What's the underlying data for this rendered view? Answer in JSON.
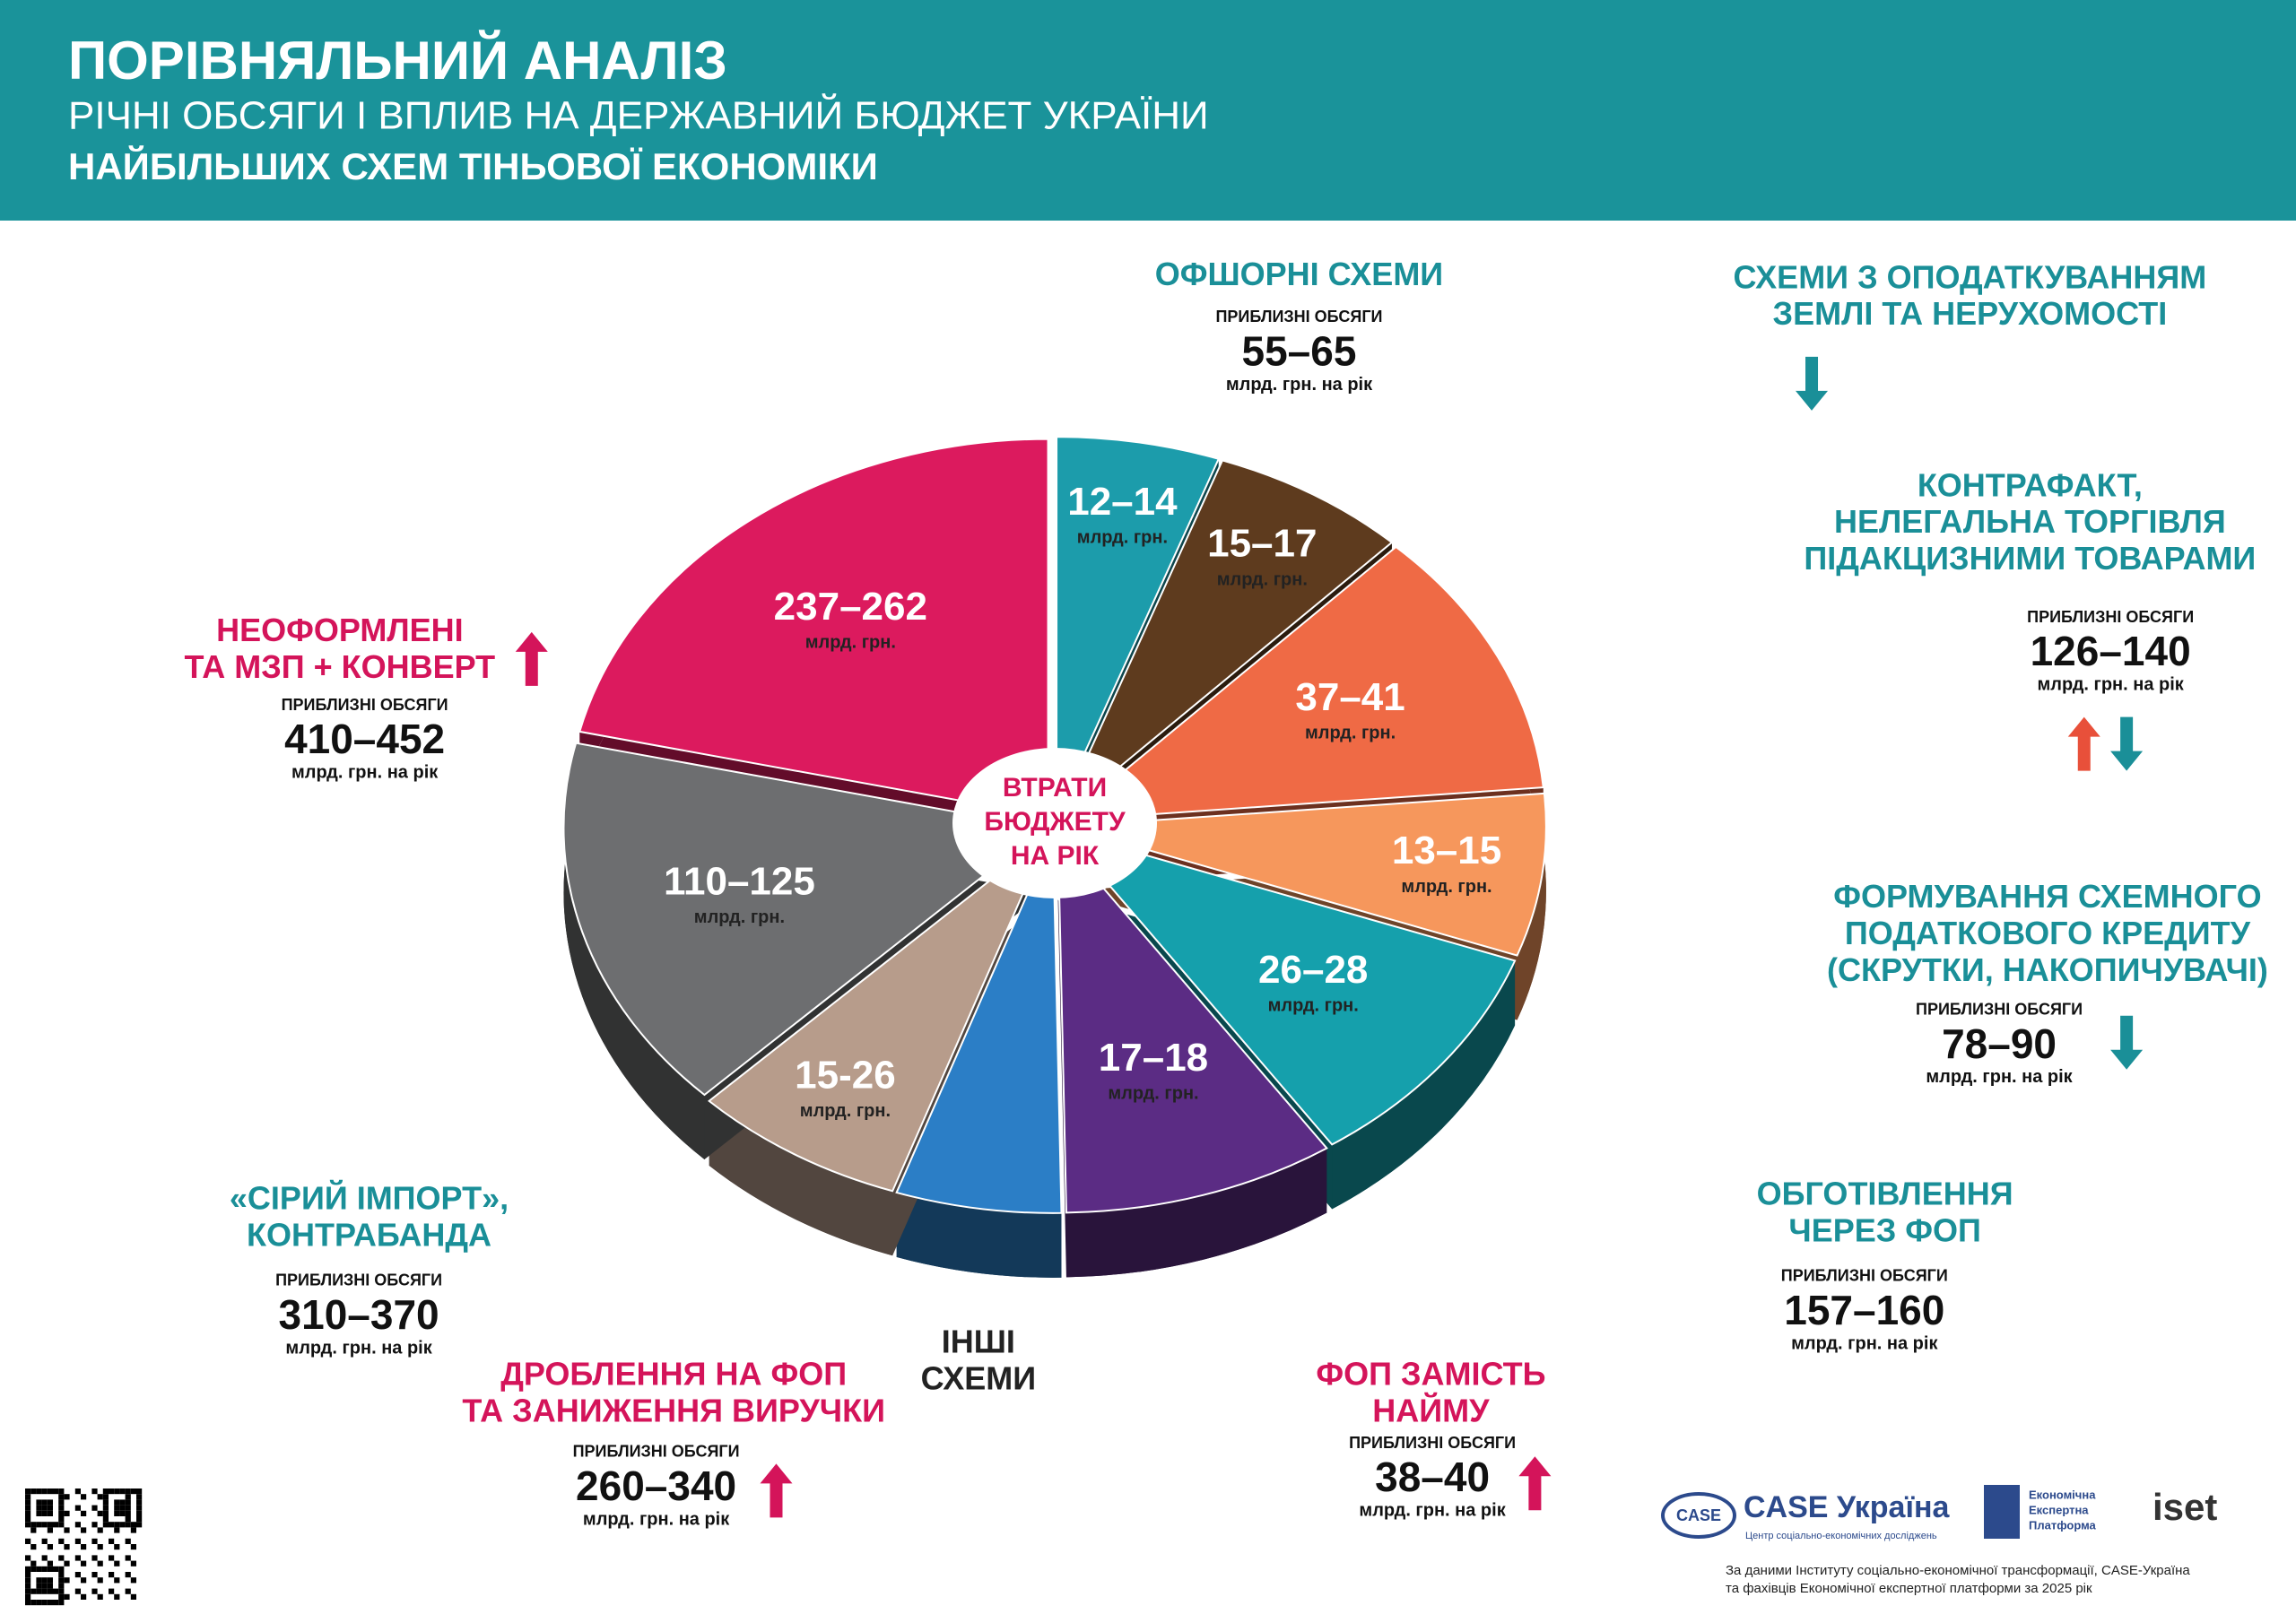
{
  "header": {
    "title": "ПОРІВНЯЛЬНИЙ АНАЛІЗ",
    "subtitle": [
      "РІЧНІ ОБСЯГИ І ВПЛИВ НА ДЕРЖАВНИЙ БЮДЖЕТ УКРАЇНИ",
      "НАЙБІЛЬШИХ СХЕМ ТІНЬОВОЇ ЕКОНОМІКИ"
    ]
  },
  "center_label": [
    "ВТРАТИ",
    "БЮДЖЕТУ",
    "НА РІК"
  ],
  "slices": [
    {
      "value": "12–14",
      "unit": "млрд. грн.",
      "color": "#1c9cab"
    },
    {
      "value": "15–17",
      "unit": "млрд. грн.",
      "color": "#5e3b1e"
    },
    {
      "value": "37–41",
      "unit": "млрд. грн.",
      "color": "#ef6a45"
    },
    {
      "value": "13–15",
      "unit": "млрд. грн.",
      "color": "#f6975c"
    },
    {
      "value": "26–28",
      "unit": "млрд. грн.",
      "color": "#15a0ac"
    },
    {
      "value": "17–18",
      "unit": "млрд. грн.",
      "color": "#5b2c84"
    },
    {
      "color": "#2b7ec6"
    },
    {
      "value": "15-26",
      "unit": "млрд. грн.",
      "color": "#b79c8b"
    },
    {
      "value": "110–125",
      "unit": "млрд. грн.",
      "color": "#6d6e70"
    },
    {
      "value": "237–262",
      "unit": "млрд. грн.",
      "color": "#dc1a5e"
    }
  ],
  "schemes": [
    {
      "title": [
        "НЕОФОРМЛЕНІ",
        "ТА МЗП + КОНВЕРТ"
      ],
      "color": "#d4145a",
      "volume_label": "ПРИБЛИЗНІ ОБСЯГИ",
      "volume": "410–452",
      "unit": "млрд. грн. на рік",
      "trend": [
        "up"
      ],
      "trend_colors": [
        "#d4145a"
      ]
    },
    {
      "title": [
        "«СІРИЙ ІМПОРТ»,",
        "КОНТРАБАНДА"
      ],
      "color": "#1a8f98",
      "volume_label": "ПРИБЛИЗНІ ОБСЯГИ",
      "volume": "310–370",
      "unit": "млрд. грн. на рік"
    },
    {
      "title": [
        "ДРОБЛЕННЯ НА ФОП",
        "ТА ЗАНИЖЕННЯ ВИРУЧКИ"
      ],
      "color": "#d4145a",
      "volume_label": "ПРИБЛИЗНІ ОБСЯГИ",
      "volume": "260–340",
      "unit": "млрд. грн. на рік",
      "trend": [
        "up"
      ],
      "trend_colors": [
        "#d4145a"
      ]
    },
    {
      "title": [
        "ІНШІ",
        "СХЕМИ"
      ],
      "color": "#222222"
    },
    {
      "title": [
        "ФОП ЗАМІСТЬ",
        "НАЙМУ"
      ],
      "color": "#d4145a",
      "volume_label": "ПРИБЛИЗНІ ОБСЯГИ",
      "volume": "38–40",
      "unit": "млрд. грн. на рік",
      "trend": [
        "up"
      ],
      "trend_colors": [
        "#d4145a"
      ]
    },
    {
      "title": [
        "ОБГОТІВЛЕННЯ",
        "ЧЕРЕЗ ФОП"
      ],
      "color": "#1a8f98",
      "volume_label": "ПРИБЛИЗНІ ОБСЯГИ",
      "volume": "157–160",
      "unit": "млрд. грн. на рік"
    },
    {
      "title": [
        "ФОРМУВАННЯ СХЕМНОГО",
        "ПОДАТКОВОГО КРЕДИТУ",
        "(СКРУТКИ, НАКОПИЧУВАЧІ)"
      ],
      "color": "#1a8f98",
      "volume_label": "ПРИБЛИЗНІ ОБСЯГИ",
      "volume": "78–90",
      "unit": "млрд. грн. на рік",
      "trend": [
        "down"
      ],
      "trend_colors": [
        "#1a8f98"
      ]
    },
    {
      "title": [
        "КОНТРАФАКТ,",
        "НЕЛЕГАЛЬНА ТОРГІВЛЯ",
        "ПІДАКЦИЗНИМИ ТОВАРАМИ"
      ],
      "color": "#1a8f98",
      "volume_label": "ПРИБЛИЗНІ ОБСЯГИ",
      "volume": "126–140",
      "unit": "млрд. грн. на рік",
      "trend": [
        "up",
        "down"
      ],
      "trend_colors": [
        "#e8503a",
        "#1a8f98"
      ]
    },
    {
      "title": [
        "СХЕМИ З ОПОДАТКУВАННЯМ",
        "ЗЕМЛІ ТА НЕРУХОМОСТІ"
      ],
      "color": "#1a8f98",
      "trend": [
        "down"
      ],
      "trend_colors": [
        "#1a8f98"
      ]
    },
    {
      "title": [
        "ОФШОРНІ СХЕМИ"
      ],
      "color": "#1a8f98",
      "volume_label": "ПРИБЛИЗНІ ОБСЯГИ",
      "volume": "55–65",
      "unit": "млрд. грн. на рік"
    }
  ],
  "footer": {
    "logo_case_mark": "CASE",
    "logo_case": "CASE Україна",
    "logo_case_sub": "Центр соціально-економічних досліджень",
    "logo_platform": [
      "Економічна",
      "Експертна",
      "Платформа"
    ],
    "logo_iset": "iset",
    "source": [
      "За даними Інституту соціально-економічної трансформації, CASE-Україна",
      "та фахівців Економічної експертної платформи за 2025 рік"
    ]
  }
}
